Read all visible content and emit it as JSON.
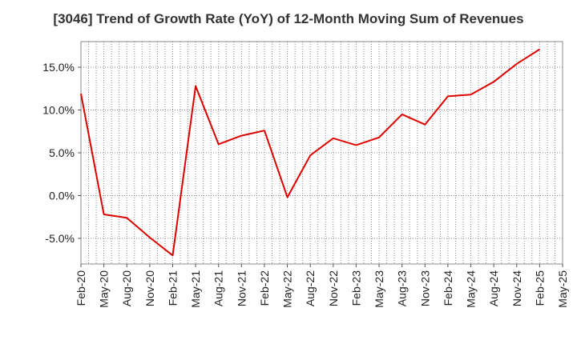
{
  "chart_data": {
    "type": "line",
    "title": "[3046]  Trend of Growth Rate (YoY) of 12-Month Moving Sum of Revenues",
    "xlabel": "",
    "ylabel": "",
    "ylim": [
      -8.0,
      18.0
    ],
    "yticks": [
      -5.0,
      0.0,
      5.0,
      10.0,
      15.0
    ],
    "ytick_labels": [
      "-5.0%",
      "0.0%",
      "5.0%",
      "10.0%",
      "15.0%"
    ],
    "x_tick_labels": [
      "Feb-20",
      "May-20",
      "Aug-20",
      "Nov-20",
      "Feb-21",
      "May-21",
      "Aug-21",
      "Nov-21",
      "Feb-22",
      "May-22",
      "Aug-22",
      "Nov-22",
      "Feb-23",
      "May-23",
      "Aug-23",
      "Nov-23",
      "Feb-24",
      "May-24",
      "Aug-24",
      "Nov-24",
      "Feb-25",
      "May-25"
    ],
    "grid": true,
    "line_color": "#dd0000",
    "series": [
      {
        "x": [
          "Feb-20",
          "May-20",
          "Aug-20",
          "Nov-20",
          "Feb-21",
          "May-21",
          "Aug-21",
          "Nov-21",
          "Feb-22",
          "May-22",
          "Aug-22",
          "Nov-22",
          "Feb-23",
          "May-23",
          "Aug-23",
          "Nov-23",
          "Feb-24",
          "May-24",
          "Aug-24",
          "Nov-24",
          "Feb-25"
        ],
        "values": [
          11.9,
          -2.2,
          -2.6,
          -4.9,
          -7.0,
          12.8,
          6.0,
          7.0,
          7.6,
          -0.2,
          4.7,
          6.7,
          5.9,
          6.8,
          9.5,
          8.3,
          11.6,
          11.8,
          13.3,
          15.4,
          17.1
        ]
      }
    ]
  }
}
